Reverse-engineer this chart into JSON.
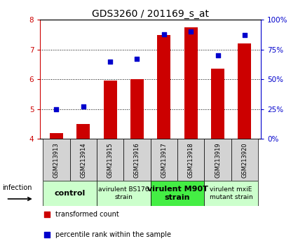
{
  "title": "GDS3260 / 201169_s_at",
  "samples": [
    "GSM213913",
    "GSM213914",
    "GSM213915",
    "GSM213916",
    "GSM213917",
    "GSM213918",
    "GSM213919",
    "GSM213920"
  ],
  "transformed_count": [
    4.2,
    4.5,
    5.95,
    6.0,
    7.5,
    7.75,
    6.35,
    7.2
  ],
  "percentile_rank": [
    25,
    27,
    65,
    67,
    88,
    90,
    70,
    87
  ],
  "bar_bottom": 4.0,
  "ylim_left": [
    4,
    8
  ],
  "ylim_right": [
    0,
    100
  ],
  "yticks_left": [
    4,
    5,
    6,
    7,
    8
  ],
  "yticks_right": [
    0,
    25,
    50,
    75,
    100
  ],
  "ytick_labels_right": [
    "0%",
    "25%",
    "50%",
    "75%",
    "100%"
  ],
  "bar_color": "#cc0000",
  "dot_color": "#0000cc",
  "bar_width": 0.5,
  "dot_size": 25,
  "groups": [
    {
      "label": "control",
      "samples": [
        0,
        1
      ],
      "color": "#ccffcc",
      "fontsize": 8,
      "bold": true
    },
    {
      "label": "avirulent BS176\nstrain",
      "samples": [
        2,
        3
      ],
      "color": "#ccffcc",
      "fontsize": 6.5,
      "bold": false
    },
    {
      "label": "virulent M90T\nstrain",
      "samples": [
        4,
        5
      ],
      "color": "#44ee44",
      "fontsize": 8,
      "bold": true
    },
    {
      "label": "virulent mxiE\nmutant strain",
      "samples": [
        6,
        7
      ],
      "color": "#ccffcc",
      "fontsize": 6.5,
      "bold": false
    }
  ],
  "infection_label": "infection",
  "legend_bar_label": "transformed count",
  "legend_dot_label": "percentile rank within the sample",
  "background_color": "#ffffff",
  "plot_bg_color": "#ffffff",
  "left_tick_color": "#cc0000",
  "right_tick_color": "#0000cc",
  "title_fontsize": 10,
  "tick_label_fontsize": 7.5,
  "sample_label_fontsize": 6,
  "legend_fontsize": 7
}
